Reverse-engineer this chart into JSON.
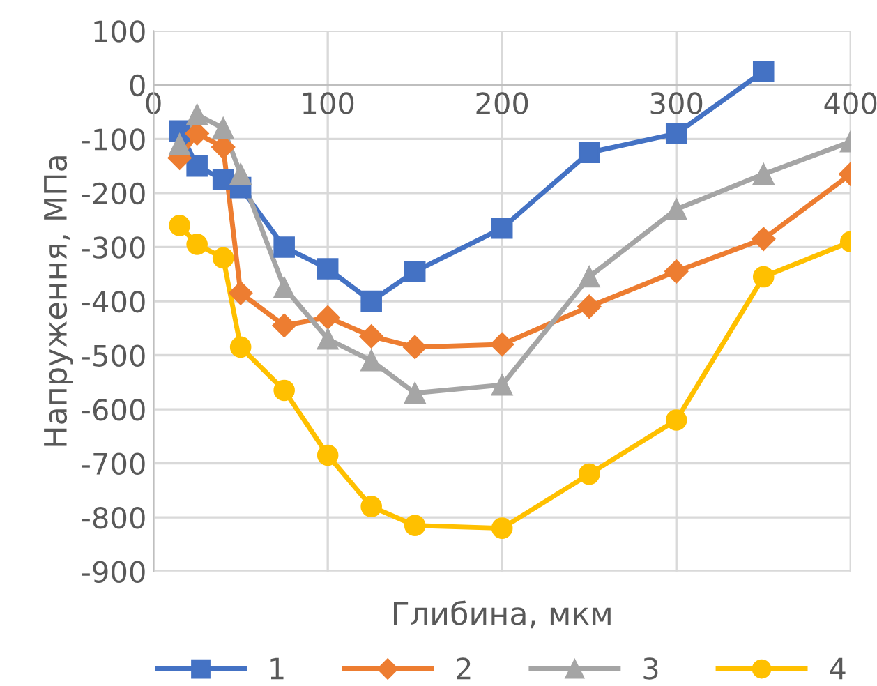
{
  "chart_data": {
    "type": "line",
    "xlabel": "Глибина, мкм",
    "ylabel": "Напруження, МПа",
    "xlim": [
      0,
      400
    ],
    "xticks": [
      0,
      100,
      200,
      300,
      400
    ],
    "ylim": [
      -900,
      100
    ],
    "yticks": [
      -900,
      -800,
      -700,
      -600,
      -500,
      -400,
      -300,
      -200,
      -100,
      0,
      100
    ],
    "grid": true,
    "legend": "bottom",
    "series": [
      {
        "name": "1",
        "color": "#4472c4",
        "marker": "square",
        "x": [
          15,
          25,
          40,
          50,
          75,
          100,
          125,
          150,
          200,
          250,
          300,
          350
        ],
        "values": [
          -85,
          -150,
          -175,
          -190,
          -300,
          -340,
          -400,
          -345,
          -265,
          -125,
          -90,
          25
        ]
      },
      {
        "name": "2",
        "color": "#ed7d31",
        "marker": "diamond",
        "x": [
          15,
          25,
          40,
          50,
          75,
          100,
          125,
          150,
          200,
          250,
          300,
          350,
          400
        ],
        "values": [
          -135,
          -90,
          -115,
          -385,
          -445,
          -430,
          -465,
          -485,
          -480,
          -410,
          -345,
          -285,
          -165
        ]
      },
      {
        "name": "3",
        "color": "#a5a5a5",
        "marker": "triangle",
        "x": [
          15,
          25,
          40,
          50,
          75,
          100,
          125,
          150,
          200,
          250,
          300,
          350,
          400
        ],
        "values": [
          -110,
          -55,
          -80,
          -165,
          -375,
          -470,
          -510,
          -570,
          -555,
          -355,
          -230,
          -165,
          -105
        ]
      },
      {
        "name": "4",
        "color": "#ffc000",
        "marker": "circle",
        "x": [
          15,
          25,
          40,
          50,
          75,
          100,
          125,
          150,
          200,
          250,
          300,
          350,
          400
        ],
        "values": [
          -260,
          -295,
          -320,
          -485,
          -565,
          -685,
          -780,
          -815,
          -820,
          -720,
          -620,
          -355,
          -290
        ]
      }
    ]
  }
}
